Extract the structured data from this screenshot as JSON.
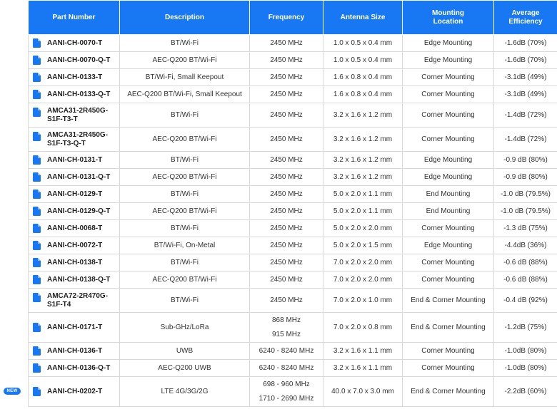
{
  "header": {
    "part_number": "Part Number",
    "description": "Description",
    "frequency": "Frequency",
    "antenna_size": "Antenna Size",
    "mounting_location": "Mounting\nLocation",
    "average_efficiency": "Average\nEfficiency"
  },
  "badge": {
    "new_label": "NEW"
  },
  "icons": {
    "part_link": "document-icon"
  },
  "colors": {
    "accent": "#1877f2",
    "header_text": "#ffffff"
  },
  "rows": [
    {
      "part": "AANI-CH-0070-T",
      "desc": "BT/Wi-Fi",
      "freq": [
        "2450 MHz"
      ],
      "size": "1.0 x 0.5 x 0.4 mm",
      "mount": "Edge Mounting",
      "eff": "-1.6dB (70%)"
    },
    {
      "part": "AANI-CH-0070-Q-T",
      "desc": "AEC-Q200 BT/Wi-Fi",
      "freq": [
        "2450 MHz"
      ],
      "size": "1.0 x 0.5 x 0.4 mm",
      "mount": "Edge Mounting",
      "eff": "-1.6dB (70%)"
    },
    {
      "part": "AANI-CH-0133-T",
      "desc": "BT/Wi-Fi, Small Keepout",
      "freq": [
        "2450 MHz"
      ],
      "size": "1.6 x 0.8 x 0.4 mm",
      "mount": "Corner Mounting",
      "eff": "-3.1dB (49%)"
    },
    {
      "part": "AANI-CH-0133-Q-T",
      "desc": "AEC-Q200 BT/Wi-Fi, Small Keepout",
      "freq": [
        "2450 MHz"
      ],
      "size": "1.6 x 0.8 x 0.4 mm",
      "mount": "Corner Mounting",
      "eff": "-3.1dB (49%)"
    },
    {
      "part": "AMCA31-2R450G-\nS1F-T3-T",
      "desc": "BT/Wi-Fi",
      "freq": [
        "2450 MHz"
      ],
      "size": "3.2 x 1.6 x 1.2 mm",
      "mount": "Corner Mounting",
      "eff": "-1.4dB (72%)"
    },
    {
      "part": "AMCA31-2R450G-\nS1F-T3-Q-T",
      "desc": "AEC-Q200 BT/Wi-Fi",
      "freq": [
        "2450 MHz"
      ],
      "size": "3.2 x 1.6 x 1.2 mm",
      "mount": "Corner Mounting",
      "eff": "-1.4dB (72%)"
    },
    {
      "part": "AANI-CH-0131-T",
      "desc": "BT/Wi-Fi",
      "freq": [
        "2450 MHz"
      ],
      "size": "3.2 x 1.6 x 1.2 mm",
      "mount": "Edge Mounting",
      "eff": "-0.9 dB (80%)"
    },
    {
      "part": "AANI-CH-0131-Q-T",
      "desc": "AEC-Q200 BT/Wi-Fi",
      "freq": [
        "2450 MHz"
      ],
      "size": "3.2 x 1.6 x 1.2 mm",
      "mount": "Edge Mounting",
      "eff": "-0.9 dB (80%)"
    },
    {
      "part": "AANI-CH-0129-T",
      "desc": "BT/Wi-Fi",
      "freq": [
        "2450 MHz"
      ],
      "size": "5.0 x 2.0 x 1.1 mm",
      "mount": "End Mounting",
      "eff": "-1.0 dB (79.5%)"
    },
    {
      "part": "AANI-CH-0129-Q-T",
      "desc": "AEC-Q200 BT/Wi-Fi",
      "freq": [
        "2450 MHz"
      ],
      "size": "5.0 x 2.0 x 1.1 mm",
      "mount": "End Mounting",
      "eff": "-1.0 dB (79.5%)"
    },
    {
      "part": "AANI-CH-0068-T",
      "desc": "BT/Wi-Fi",
      "freq": [
        "2450 MHz"
      ],
      "size": "5.0 x 2.0 x 2.0 mm",
      "mount": "Corner Mounting",
      "eff": "-1.3 dB (75%)"
    },
    {
      "part": "AANI-CH-0072-T",
      "desc": "BT/Wi-Fi, On-Metal",
      "freq": [
        "2450 MHz"
      ],
      "size": "5.0 x 2.0 x 1.5 mm",
      "mount": "Edge Mounting",
      "eff": "-4.4dB (36%)"
    },
    {
      "part": "AANI-CH-0138-T",
      "desc": "BT/Wi-Fi",
      "freq": [
        "2450 MHz"
      ],
      "size": "7.0 x 2.0 x 2.0 mm",
      "mount": "Corner Mounting",
      "eff": "-0.6 dB (88%)"
    },
    {
      "part": "AANI-CH-0138-Q-T",
      "desc": "AEC-Q200 BT/Wi-Fi",
      "freq": [
        "2450 MHz"
      ],
      "size": "7.0 x 2.0 x 2.0 mm",
      "mount": "Corner Mounting",
      "eff": "-0.6 dB (88%)"
    },
    {
      "part": "AMCA72-2R470G-\nS1F-T4",
      "desc": "BT/Wi-Fi",
      "freq": [
        "2450 MHz"
      ],
      "size": "7.0 x 2.0 x 1.0 mm",
      "mount": "End & Corner Mounting",
      "eff": "-0.4 dB (92%)"
    },
    {
      "part": "AANI-CH-0171-T",
      "desc": "Sub-GHz/LoRa",
      "freq": [
        "868 MHz",
        "915 MHz"
      ],
      "size": "7.0 x 2.0 x 0.8 mm",
      "mount": "End & Corner Mounting",
      "eff": "-1.2dB (75%)"
    },
    {
      "part": "AANI-CH-0136-T",
      "desc": "UWB",
      "freq": [
        "6240 - 8240 MHz"
      ],
      "size": "3.2 x 1.6 x 1.1 mm",
      "mount": "Corner Mounting",
      "eff": "-1.0dB (80%)"
    },
    {
      "part": "AANI-CH-0136-Q-T",
      "desc": "AEC-Q200 UWB",
      "freq": [
        "6240 - 8240 MHz"
      ],
      "size": "3.2 x 1.6 x 1.1 mm",
      "mount": "Corner Mounting",
      "eff": "-1.0dB (80%)"
    },
    {
      "part": "AANI-CH-0202-T",
      "desc": "LTE 4G/3G/2G",
      "freq": [
        "698 - 960 MHz",
        "1710 - 2690 MHz"
      ],
      "size": "40.0 x 7.0 x 3.0 mm",
      "mount": "End & Corner Mounting",
      "eff": "-2.2dB (60%)"
    }
  ]
}
